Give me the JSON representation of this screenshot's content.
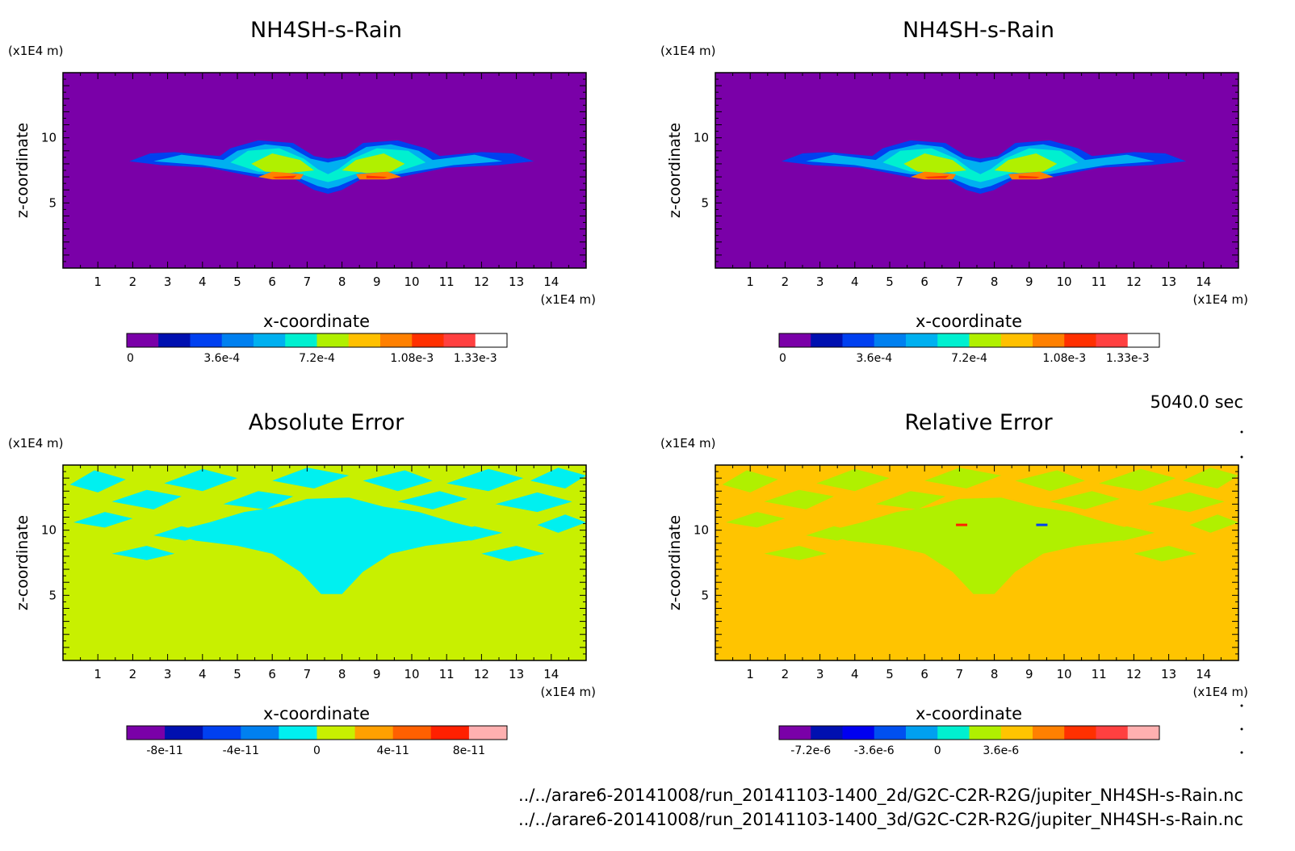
{
  "header": {
    "time_label": "5040.0 sec"
  },
  "footer": {
    "paths": [
      "../../arare6-20141008/run_20141103-1400_2d/G2C-C2R-R2G/jupiter_NH4SH-s-Rain.nc",
      "../../arare6-20141008/run_20141103-1400_3d/G2C-C2R-R2G/jupiter_NH4SH-s-Rain.nc"
    ]
  },
  "chart_data": [
    {
      "type": "heatmap",
      "title": "NH4SH-s-Rain",
      "xlabel": "x-coordinate",
      "ylabel": "z-coordinate",
      "x_unit": "(x1E4 m)",
      "y_unit": "(x1E4 m)",
      "xlim": [
        0,
        15
      ],
      "ylim": [
        0,
        15
      ],
      "x_ticks": [
        1,
        2,
        3,
        4,
        5,
        6,
        7,
        8,
        9,
        10,
        11,
        12,
        13,
        14
      ],
      "y_ticks": [
        5,
        10
      ],
      "background": "#7a00a8",
      "colorbar": {
        "colors": [
          "#7a00a8",
          "#0010b0",
          "#0040f0",
          "#0080f0",
          "#00b0f0",
          "#00f0d0",
          "#b0f000",
          "#ffc000",
          "#ff8000",
          "#ff3000",
          "#ff4040",
          "#ffffff"
        ],
        "tick_labels": [
          "0",
          "3.6e-4",
          "7.2e-4",
          "1.08e-3",
          "1.33e-3"
        ],
        "tick_positions": [
          0,
          3,
          6,
          9,
          11
        ]
      }
    },
    {
      "type": "heatmap",
      "title": "NH4SH-s-Rain",
      "xlabel": "x-coordinate",
      "ylabel": "z-coordinate",
      "x_unit": "(x1E4 m)",
      "y_unit": "(x1E4 m)",
      "xlim": [
        0,
        15
      ],
      "ylim": [
        0,
        15
      ],
      "x_ticks": [
        1,
        2,
        3,
        4,
        5,
        6,
        7,
        8,
        9,
        10,
        11,
        12,
        13,
        14
      ],
      "y_ticks": [
        5,
        10
      ],
      "background": "#7a00a8",
      "colorbar": {
        "colors": [
          "#7a00a8",
          "#0010b0",
          "#0040f0",
          "#0080f0",
          "#00b0f0",
          "#00f0d0",
          "#b0f000",
          "#ffc000",
          "#ff8000",
          "#ff3000",
          "#ff4040",
          "#ffffff"
        ],
        "tick_labels": [
          "0",
          "3.6e-4",
          "7.2e-4",
          "1.08e-3",
          "1.33e-3"
        ],
        "tick_positions": [
          0,
          3,
          6,
          9,
          11
        ]
      }
    },
    {
      "type": "heatmap",
      "title": "Absolute Error",
      "xlabel": "x-coordinate",
      "ylabel": "z-coordinate",
      "x_unit": "(x1E4 m)",
      "y_unit": "(x1E4 m)",
      "xlim": [
        0,
        15
      ],
      "ylim": [
        0,
        15
      ],
      "x_ticks": [
        1,
        2,
        3,
        4,
        5,
        6,
        7,
        8,
        9,
        10,
        11,
        12,
        13,
        14
      ],
      "y_ticks": [
        5,
        10
      ],
      "background": "#c8f000",
      "colorbar": {
        "colors": [
          "#7a00a8",
          "#0010b0",
          "#0040f0",
          "#0080f0",
          "#00f0f0",
          "#c8f000",
          "#ffa000",
          "#ff6000",
          "#ff2000",
          "#ffb0b0"
        ],
        "tick_labels": [
          "-8e-11",
          "-4e-11",
          "0",
          "4e-11",
          "8e-11"
        ],
        "tick_positions": [
          1,
          3,
          5,
          7,
          9
        ]
      }
    },
    {
      "type": "heatmap",
      "title": "Relative Error",
      "xlabel": "x-coordinate",
      "ylabel": "z-coordinate",
      "x_unit": "(x1E4 m)",
      "y_unit": "(x1E4 m)",
      "xlim": [
        0,
        15
      ],
      "ylim": [
        0,
        15
      ],
      "x_ticks": [
        1,
        2,
        3,
        4,
        5,
        6,
        7,
        8,
        9,
        10,
        11,
        12,
        13,
        14
      ],
      "y_ticks": [
        5,
        10
      ],
      "background": "#ffc400",
      "colorbar": {
        "colors": [
          "#7a00a8",
          "#0010b0",
          "#0000f0",
          "#0050f0",
          "#00a0f0",
          "#00f0d0",
          "#b0f000",
          "#ffc400",
          "#ff8000",
          "#ff3000",
          "#ff4040",
          "#ffb0b0"
        ],
        "tick_labels": [
          "-7.2e-6",
          "-3.6e-6",
          "0",
          "3.6e-6"
        ],
        "tick_positions": [
          1,
          3,
          5,
          7
        ]
      }
    }
  ]
}
